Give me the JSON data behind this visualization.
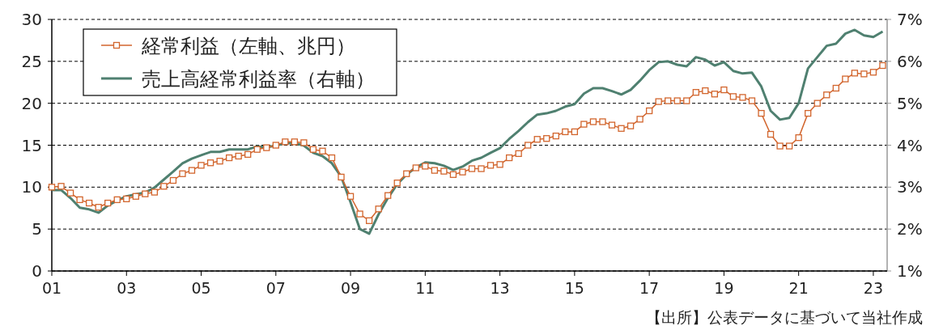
{
  "chart_data": {
    "type": "line",
    "x": [
      2001,
      2001.25,
      2001.5,
      2001.75,
      2002,
      2002.25,
      2002.5,
      2002.75,
      2003,
      2003.25,
      2003.5,
      2003.75,
      2004,
      2004.25,
      2004.5,
      2004.75,
      2005,
      2005.25,
      2005.5,
      2005.75,
      2006,
      2006.25,
      2006.5,
      2006.75,
      2007,
      2007.25,
      2007.5,
      2007.75,
      2008,
      2008.25,
      2008.5,
      2008.75,
      2009,
      2009.25,
      2009.5,
      2009.75,
      2010,
      2010.25,
      2010.5,
      2010.75,
      2011,
      2011.25,
      2011.5,
      2011.75,
      2012,
      2012.25,
      2012.5,
      2012.75,
      2013,
      2013.25,
      2013.5,
      2013.75,
      2014,
      2014.25,
      2014.5,
      2014.75,
      2015,
      2015.25,
      2015.5,
      2015.75,
      2016,
      2016.25,
      2016.5,
      2016.75,
      2017,
      2017.25,
      2017.5,
      2017.75,
      2018,
      2018.25,
      2018.5,
      2018.75,
      2019,
      2019.25,
      2019.5,
      2019.75,
      2020,
      2020.25,
      2020.5,
      2020.75,
      2021,
      2021.25,
      2021.5,
      2021.75,
      2022,
      2022.25,
      2022.5,
      2022.75,
      2023,
      2023.25
    ],
    "series": [
      {
        "name": "経常利益（左軸、兆円）",
        "color": "#d2652d",
        "marker": "square",
        "values": [
          10.0,
          10.1,
          9.3,
          8.5,
          8.1,
          7.6,
          8.1,
          8.5,
          8.6,
          8.9,
          9.2,
          9.4,
          10.1,
          10.8,
          11.6,
          12.0,
          12.6,
          12.9,
          13.1,
          13.5,
          13.7,
          13.9,
          14.5,
          14.7,
          15.0,
          15.4,
          15.4,
          15.3,
          14.5,
          14.3,
          13.5,
          11.2,
          8.9,
          6.8,
          6.0,
          7.4,
          9.0,
          10.5,
          11.6,
          12.3,
          12.5,
          12.0,
          11.9,
          11.5,
          11.8,
          12.2,
          12.2,
          12.6,
          12.7,
          13.5,
          14.0,
          15.0,
          15.7,
          15.8,
          16.1,
          16.6,
          16.6,
          17.5,
          17.8,
          17.8,
          17.4,
          17.0,
          17.3,
          18.1,
          19.1,
          20.2,
          20.3,
          20.3,
          20.3,
          21.3,
          21.5,
          21.1,
          21.6,
          20.8,
          20.7,
          20.3,
          18.8,
          16.3,
          14.9,
          14.9,
          15.9,
          18.8,
          20.0,
          21.0,
          21.8,
          22.9,
          23.6,
          23.5,
          23.7,
          24.5
        ]
      },
      {
        "name": "売上高経常利益率（右軸）",
        "color": "#4f8070",
        "axis": "y2",
        "marker": "none",
        "values": [
          2.93,
          2.93,
          2.74,
          2.51,
          2.47,
          2.39,
          2.56,
          2.68,
          2.78,
          2.83,
          2.87,
          2.99,
          3.18,
          3.37,
          3.57,
          3.68,
          3.76,
          3.84,
          3.84,
          3.9,
          3.9,
          3.9,
          3.97,
          3.95,
          3.99,
          4.05,
          4.05,
          3.99,
          3.82,
          3.74,
          3.57,
          3.25,
          2.64,
          2.0,
          1.89,
          2.35,
          2.74,
          3.07,
          3.3,
          3.47,
          3.59,
          3.57,
          3.51,
          3.41,
          3.49,
          3.63,
          3.7,
          3.82,
          3.93,
          4.15,
          4.34,
          4.55,
          4.73,
          4.76,
          4.82,
          4.92,
          4.98,
          5.23,
          5.36,
          5.36,
          5.29,
          5.21,
          5.32,
          5.54,
          5.79,
          5.98,
          6.0,
          5.92,
          5.88,
          6.1,
          6.04,
          5.9,
          5.98,
          5.77,
          5.71,
          5.73,
          5.4,
          4.82,
          4.61,
          4.65,
          5.0,
          5.83,
          6.1,
          6.37,
          6.42,
          6.66,
          6.75,
          6.62,
          6.58,
          6.71
        ]
      }
    ],
    "xlim": [
      2001,
      2023.37
    ],
    "xticks": [
      {
        "value": 2001,
        "label": "01"
      },
      {
        "value": 2003,
        "label": "03"
      },
      {
        "value": 2005,
        "label": "05"
      },
      {
        "value": 2007,
        "label": "07"
      },
      {
        "value": 2009,
        "label": "09"
      },
      {
        "value": 2011,
        "label": "11"
      },
      {
        "value": 2013,
        "label": "13"
      },
      {
        "value": 2015,
        "label": "15"
      },
      {
        "value": 2017,
        "label": "17"
      },
      {
        "value": 2019,
        "label": "19"
      },
      {
        "value": 2021,
        "label": "21"
      },
      {
        "value": 2023,
        "label": "23"
      }
    ],
    "ylim": [
      0,
      30
    ],
    "yticks": [
      0,
      5,
      10,
      15,
      20,
      25,
      30
    ],
    "y2lim": [
      1,
      7
    ],
    "y2ticks": [
      {
        "value": 1,
        "label": "1%"
      },
      {
        "value": 2,
        "label": "2%"
      },
      {
        "value": 3,
        "label": "3%"
      },
      {
        "value": 4,
        "label": "4%"
      },
      {
        "value": 5,
        "label": "5%"
      },
      {
        "value": 6,
        "label": "6%"
      },
      {
        "value": 7,
        "label": "7%"
      }
    ],
    "grid": "y",
    "legend": "top left",
    "annotations": [
      "【出所】公表データに基づいて当社作成"
    ]
  }
}
